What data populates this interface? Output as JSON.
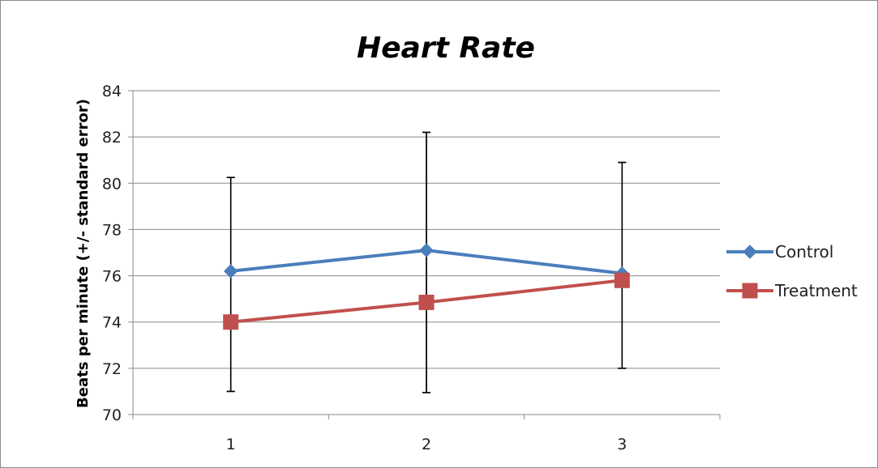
{
  "chart_data": {
    "type": "line",
    "title": "Heart Rate",
    "xlabel": "",
    "ylabel": "Beats per minute (+/- standard error)",
    "categories": [
      "1",
      "2",
      "3"
    ],
    "ylim": [
      70,
      84
    ],
    "ytick_step": 2,
    "yticks": [
      "70",
      "72",
      "74",
      "76",
      "78",
      "80",
      "82",
      "84"
    ],
    "grid": true,
    "legend_position": "right",
    "series": [
      {
        "name": "Control",
        "color": "#4a7ebb",
        "marker": "diamond",
        "values": [
          76.2,
          77.1,
          76.1
        ],
        "error_low": [
          71.0,
          70.95,
          72.0
        ],
        "error_high": [
          80.25,
          82.2,
          80.9
        ]
      },
      {
        "name": "Treatment",
        "color": "#c0504d",
        "marker": "square",
        "values": [
          74.0,
          74.85,
          75.8
        ],
        "error_low": [
          71.0,
          70.95,
          72.0
        ],
        "error_high": [
          80.25,
          82.2,
          80.9
        ]
      }
    ]
  }
}
